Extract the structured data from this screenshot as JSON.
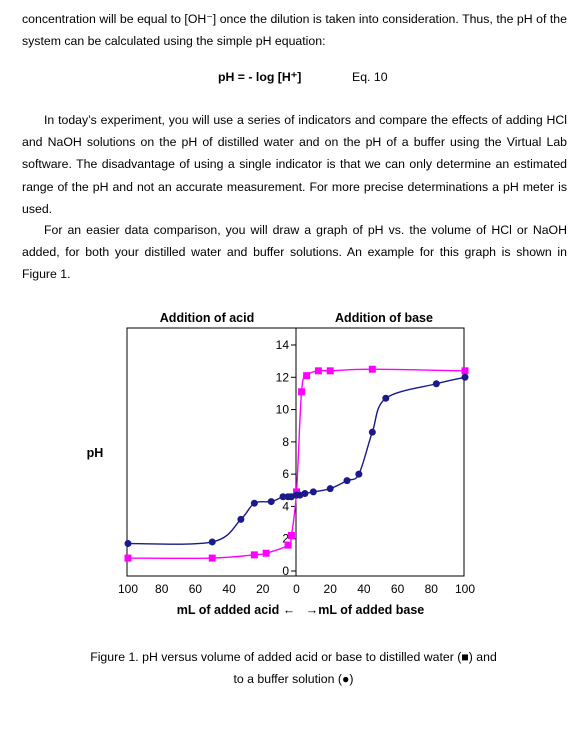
{
  "doc": {
    "intro_text": "concentration will be equal to [OH⁻] once the dilution is taken into consideration. Thus, the pH of the system can be calculated using the simple pH equation:",
    "equation": {
      "formula": "pH = - log [H⁺]",
      "label": "Eq. 10"
    },
    "para1": "In today’s experiment, you will use a series of indicators and compare the effects of adding HCl and NaOH solutions on the pH of distilled water and on the pH of a buffer using the Virtual Lab software. The disadvantage of using a single indicator is that we can only determine an estimated range of the pH and not an accurate measurement. For more precise determinations a pH meter is used.",
    "para2": "For an easier data comparison, you will draw a graph of pH vs. the volume of HCl or NaOH added, for both your distilled water and buffer solutions. An example for this graph is shown in Figure 1.",
    "caption_line1": "Figure 1. pH versus volume of added acid or base to distilled water (■) and",
    "caption_line2": "to a buffer solution (●)"
  },
  "chart_data": {
    "type": "line",
    "title_left": "Addition of acid",
    "title_right": "Addition of base",
    "ylabel": "pH",
    "xlabel_left": "mL of added acid ←",
    "xlabel_right": "→mL of added base",
    "x_tick_labels": [
      "100",
      "80",
      "60",
      "40",
      "20",
      "0",
      "20",
      "40",
      "60",
      "80",
      "100"
    ],
    "y_tick_labels": [
      "0",
      "2",
      "4",
      "6",
      "8",
      "10",
      "12",
      "14"
    ],
    "ylim": [
      0,
      14
    ],
    "x_note": "negative x = mL of added acid, positive x = mL of added base",
    "series": [
      {
        "marker": "square",
        "color": "#ff00ff",
        "points": [
          [
            -100,
            0.8
          ],
          [
            -50,
            0.8
          ],
          [
            -25,
            1.0
          ],
          [
            -18,
            1.1
          ],
          [
            -5,
            1.6
          ],
          [
            -3,
            2.2
          ],
          [
            0,
            4.9
          ],
          [
            3,
            11.1
          ],
          [
            6,
            12.1
          ],
          [
            13,
            12.4
          ],
          [
            20,
            12.4
          ],
          [
            45,
            12.5
          ],
          [
            100,
            12.4
          ]
        ]
      },
      {
        "marker": "circle",
        "color": "#1a1a8c",
        "points": [
          [
            -100,
            1.7
          ],
          [
            -50,
            1.8
          ],
          [
            -33,
            3.2
          ],
          [
            -25,
            4.2
          ],
          [
            -15,
            4.3
          ],
          [
            -8,
            4.6
          ],
          [
            -5,
            4.6
          ],
          [
            -3,
            4.6
          ],
          [
            0,
            4.7
          ],
          [
            2,
            4.7
          ],
          [
            5,
            4.8
          ],
          [
            10,
            4.9
          ],
          [
            20,
            5.1
          ],
          [
            30,
            5.6
          ],
          [
            37,
            6.0
          ],
          [
            45,
            8.6
          ],
          [
            53,
            10.7
          ],
          [
            83,
            11.6
          ],
          [
            100,
            12.0
          ]
        ]
      }
    ]
  }
}
